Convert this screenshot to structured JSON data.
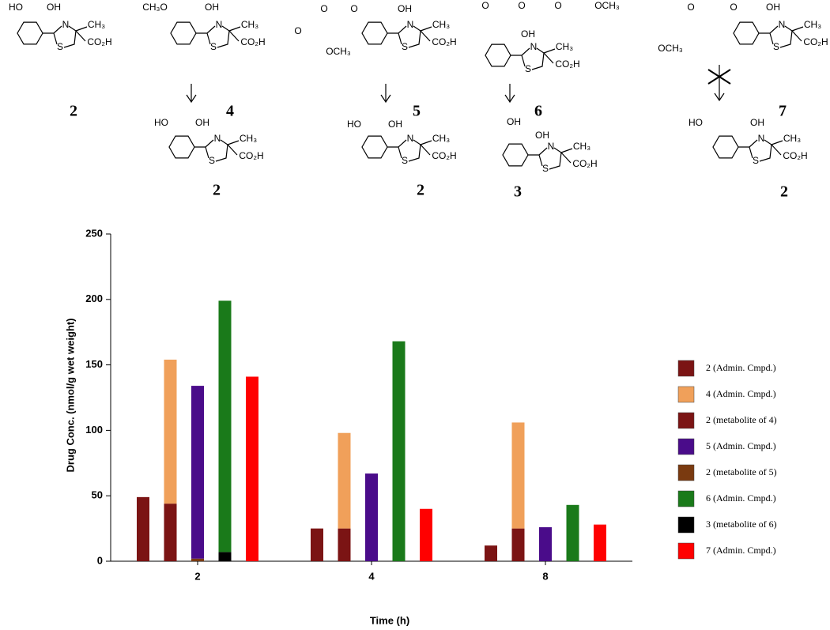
{
  "molecules": [
    {
      "label": "2",
      "texts": [
        "HO",
        "OH",
        "N",
        "S",
        "CH₃",
        "CO₂H"
      ]
    },
    {
      "label": "4",
      "texts": [
        "CH₃O",
        "OH",
        "N",
        "S",
        "CH₃",
        "CO₂H"
      ]
    },
    {
      "label": "5",
      "texts": [
        "O",
        "O",
        "O",
        "OCH₃",
        "OH",
        "N",
        "S",
        "CH₃",
        "CO₂H"
      ]
    },
    {
      "label": "6",
      "texts": [
        "O",
        "O",
        "O",
        "OCH₃",
        "OH",
        "N",
        "S",
        "CH₃",
        "CO₂H"
      ]
    },
    {
      "label": "7",
      "texts": [
        "O",
        "O",
        "OCH₃",
        "OH",
        "N",
        "S",
        "CH₃",
        "CO₂H"
      ]
    },
    {
      "label": "2",
      "texts": [
        "HO",
        "OH",
        "N",
        "S",
        "CH₃",
        "CO₂H"
      ]
    },
    {
      "label": "2",
      "texts": [
        "HO",
        "OH",
        "N",
        "S",
        "CH₃",
        "CO₂H"
      ]
    },
    {
      "label": "3",
      "texts": [
        "OH",
        "OH",
        "N",
        "S",
        "CH₃",
        "CO₂H"
      ]
    },
    {
      "label": "2",
      "texts": [
        "HO",
        "OH",
        "N",
        "S",
        "CH₃",
        "CO₂H"
      ]
    }
  ],
  "chart_data": {
    "type": "bar",
    "x_label": "Time (h)",
    "y_label": "Drug Conc. (nmol/g wet weight)",
    "categories": [
      "2",
      "4",
      "8"
    ],
    "ylim": [
      0,
      250
    ],
    "yticks": [
      0,
      50,
      100,
      150,
      200,
      250
    ],
    "series": [
      {
        "name": "2 (Admin. Cmpd.)",
        "color": "#7b1414",
        "values": [
          49,
          25,
          12
        ]
      },
      {
        "name": "4 (Admin. Cmpd.)",
        "color": "#f0a05a",
        "values": [
          110,
          73,
          81
        ]
      },
      {
        "name": "2 (metabolite of 4)",
        "color": "#7b1414",
        "values": [
          44,
          25,
          25
        ]
      },
      {
        "name": "5 (Admin. Cmpd.)",
        "color": "#4a0c8a",
        "values": [
          132,
          67,
          26
        ]
      },
      {
        "name": "2 (metabolite of 5)",
        "color": "#7a3a10",
        "values": [
          2,
          0,
          0
        ]
      },
      {
        "name": "6 (Admin. Cmpd.)",
        "color": "#1a7a1a",
        "values": [
          192,
          168,
          43
        ]
      },
      {
        "name": "3 (metabolite of 6)",
        "color": "#000000",
        "values": [
          7,
          0,
          0
        ]
      },
      {
        "name": "7 (Admin. Cmpd.)",
        "color": "#ff0000",
        "values": [
          141,
          40,
          28
        ]
      }
    ]
  }
}
